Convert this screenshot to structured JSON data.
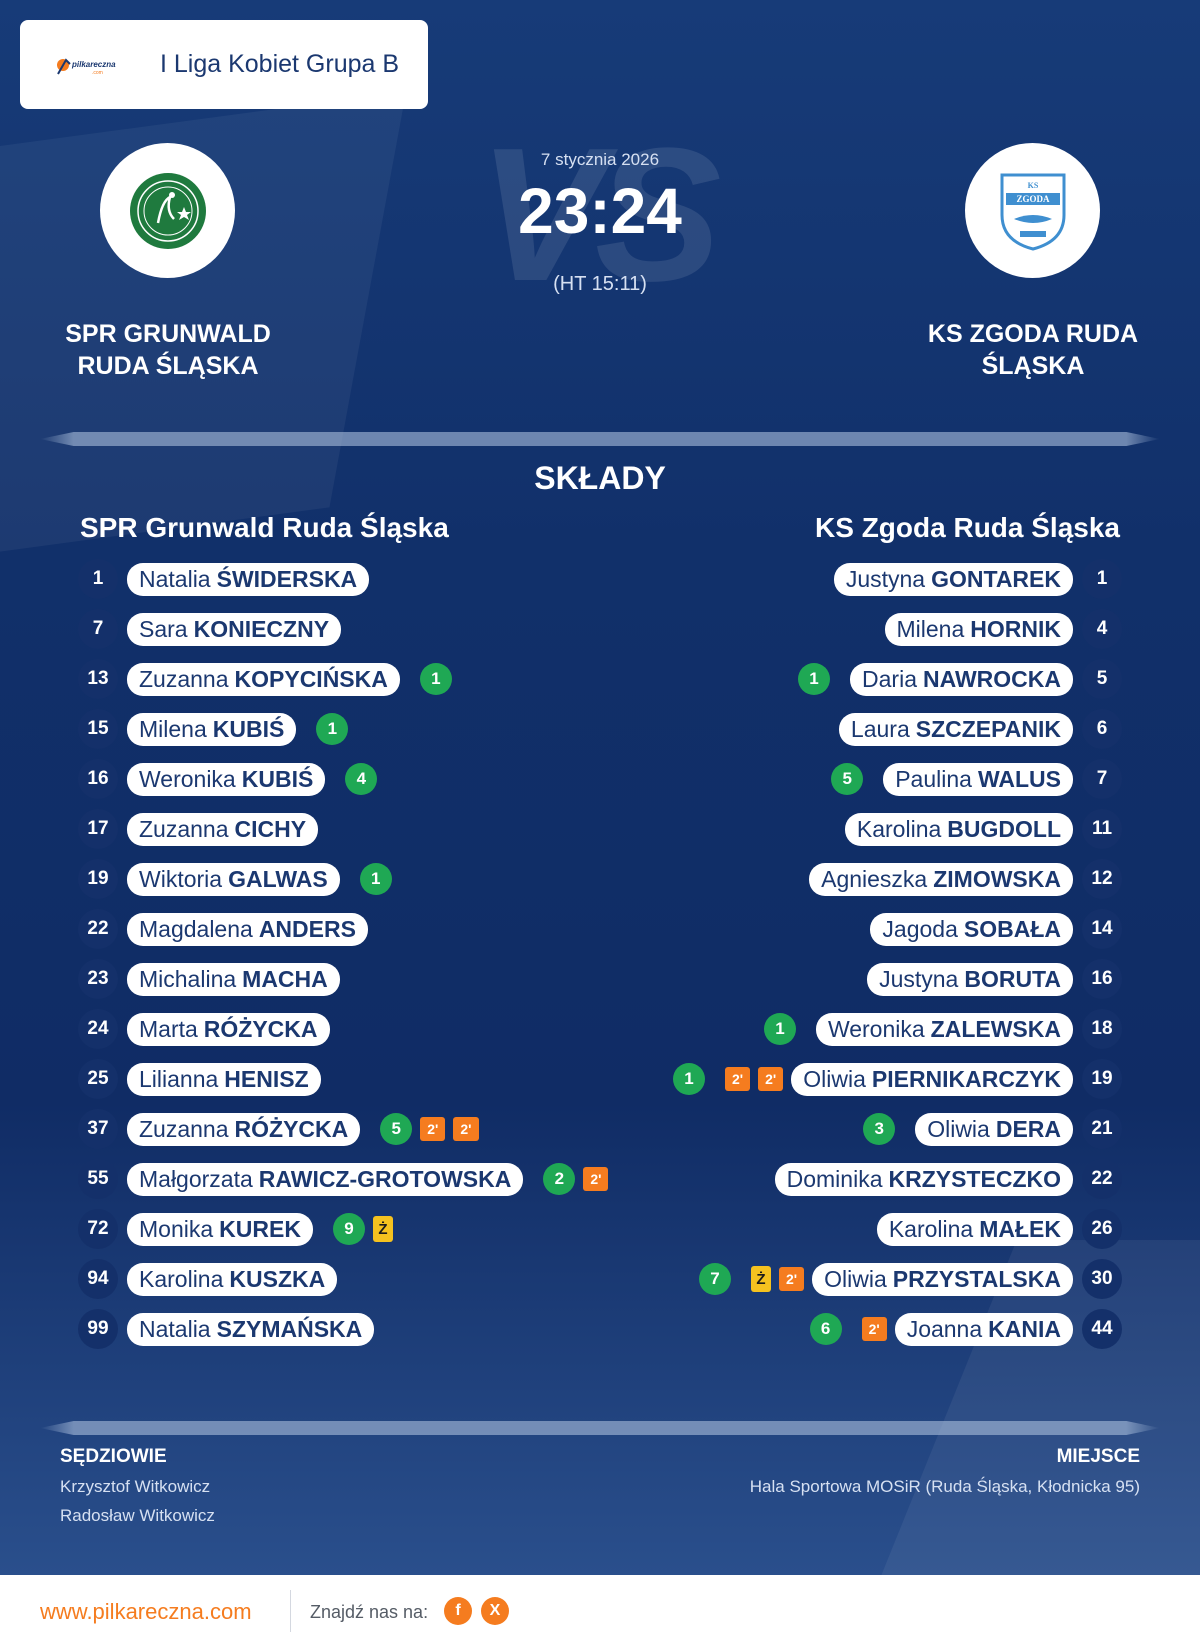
{
  "league": {
    "name": "I Liga Kobiet Grupa B",
    "logo_text": "pilkareczna"
  },
  "match": {
    "date": "7 stycznia 2026",
    "score": "23:24",
    "halftime": "(HT 15:11)",
    "vs_text": "VS"
  },
  "home": {
    "name_line1": "SPR GRUNWALD",
    "name_line2": "RUDA ŚLĄSKA",
    "lineup_title": "SPR Grunwald Ruda Śląska",
    "colors": {
      "logo": "#1f7a3e"
    },
    "players": [
      {
        "num": "1",
        "first": "Natalia",
        "last": "ŚWIDERSKA",
        "events": []
      },
      {
        "num": "7",
        "first": "Sara",
        "last": "KONIECZNY",
        "events": []
      },
      {
        "num": "13",
        "first": "Zuzanna",
        "last": "KOPYCIŃSKA",
        "events": [
          {
            "type": "goal",
            "text": "1"
          }
        ]
      },
      {
        "num": "15",
        "first": "Milena",
        "last": "KUBIŚ",
        "events": [
          {
            "type": "goal",
            "text": "1"
          }
        ]
      },
      {
        "num": "16",
        "first": "Weronika",
        "last": "KUBIŚ",
        "events": [
          {
            "type": "goal",
            "text": "4"
          }
        ]
      },
      {
        "num": "17",
        "first": "Zuzanna",
        "last": "CICHY",
        "events": []
      },
      {
        "num": "19",
        "first": "Wiktoria",
        "last": "GALWAS",
        "events": [
          {
            "type": "goal",
            "text": "1"
          }
        ]
      },
      {
        "num": "22",
        "first": "Magdalena",
        "last": "ANDERS",
        "events": []
      },
      {
        "num": "23",
        "first": "Michalina",
        "last": "MACHA",
        "events": []
      },
      {
        "num": "24",
        "first": "Marta",
        "last": "RÓŻYCKA",
        "events": []
      },
      {
        "num": "25",
        "first": "Lilianna",
        "last": "HENISZ",
        "events": []
      },
      {
        "num": "37",
        "first": "Zuzanna",
        "last": "RÓŻYCKA",
        "events": [
          {
            "type": "goal",
            "text": "5"
          },
          {
            "type": "pen",
            "text": "2'"
          },
          {
            "type": "pen",
            "text": "2'"
          }
        ]
      },
      {
        "num": "55",
        "first": "Małgorzata",
        "last": "RAWICZ-GROTOWSKA",
        "events": [
          {
            "type": "goal",
            "text": "2"
          },
          {
            "type": "pen",
            "text": "2'"
          }
        ]
      },
      {
        "num": "72",
        "first": "Monika",
        "last": "KUREK",
        "events": [
          {
            "type": "goal",
            "text": "9"
          },
          {
            "type": "yc",
            "text": "Ż"
          }
        ]
      },
      {
        "num": "94",
        "first": "Karolina",
        "last": "KUSZKA",
        "events": []
      },
      {
        "num": "99",
        "first": "Natalia",
        "last": "SZYMAŃSKA",
        "events": []
      }
    ]
  },
  "away": {
    "name_line1": "KS ZGODA RUDA",
    "name_line2": "ŚLĄSKA",
    "lineup_title": "KS Zgoda Ruda Śląska",
    "colors": {
      "logo": "#3f8fd0"
    },
    "players": [
      {
        "num": "1",
        "first": "Justyna",
        "last": "GONTAREK",
        "events": []
      },
      {
        "num": "4",
        "first": "Milena",
        "last": "HORNIK",
        "events": []
      },
      {
        "num": "5",
        "first": "Daria",
        "last": "NAWROCKA",
        "events": [
          {
            "type": "goal",
            "text": "1"
          }
        ]
      },
      {
        "num": "6",
        "first": "Laura",
        "last": "SZCZEPANIK",
        "events": []
      },
      {
        "num": "7",
        "first": "Paulina",
        "last": "WALUS",
        "events": [
          {
            "type": "goal",
            "text": "5"
          }
        ]
      },
      {
        "num": "11",
        "first": "Karolina",
        "last": "BUGDOLL",
        "events": []
      },
      {
        "num": "12",
        "first": "Agnieszka",
        "last": "ZIMOWSKA",
        "events": []
      },
      {
        "num": "14",
        "first": "Jagoda",
        "last": "SOBAŁA",
        "events": []
      },
      {
        "num": "16",
        "first": "Justyna",
        "last": "BORUTA",
        "events": []
      },
      {
        "num": "18",
        "first": "Weronika",
        "last": "ZALEWSKA",
        "events": [
          {
            "type": "goal",
            "text": "1"
          }
        ]
      },
      {
        "num": "19",
        "first": "Oliwia",
        "last": "PIERNIKARCZYK",
        "events": [
          {
            "type": "goal",
            "text": "1"
          },
          {
            "type": "pen",
            "text": "2'"
          },
          {
            "type": "pen",
            "text": "2'"
          }
        ]
      },
      {
        "num": "21",
        "first": "Oliwia",
        "last": "DERA",
        "events": [
          {
            "type": "goal",
            "text": "3"
          }
        ]
      },
      {
        "num": "22",
        "first": "Dominika",
        "last": "KRZYSTECZKO",
        "events": []
      },
      {
        "num": "26",
        "first": "Karolina",
        "last": "MAŁEK",
        "events": []
      },
      {
        "num": "30",
        "first": "Oliwia",
        "last": "PRZYSTALSKA",
        "events": [
          {
            "type": "goal",
            "text": "7"
          },
          {
            "type": "yc",
            "text": "Ż"
          },
          {
            "type": "pen",
            "text": "2'"
          }
        ]
      },
      {
        "num": "44",
        "first": "Joanna",
        "last": "KANIA",
        "events": [
          {
            "type": "goal",
            "text": "6"
          },
          {
            "type": "pen",
            "text": "2'"
          }
        ]
      }
    ]
  },
  "sections": {
    "lineups": "SKŁADY"
  },
  "referees": {
    "label": "SĘDZIOWIE",
    "names": [
      "Krzysztof Witkowicz",
      "Radosław Witkowicz"
    ]
  },
  "venue": {
    "label": "MIEJSCE",
    "text": "Hala Sportowa MOSiR (Ruda Śląska, Kłodnicka 95)"
  },
  "footer": {
    "site": "www.pilkareczna.com",
    "find_us": "Znajdź nas na:",
    "social_icons": [
      "facebook-icon",
      "x-icon"
    ],
    "accent": "#f57c1f"
  }
}
